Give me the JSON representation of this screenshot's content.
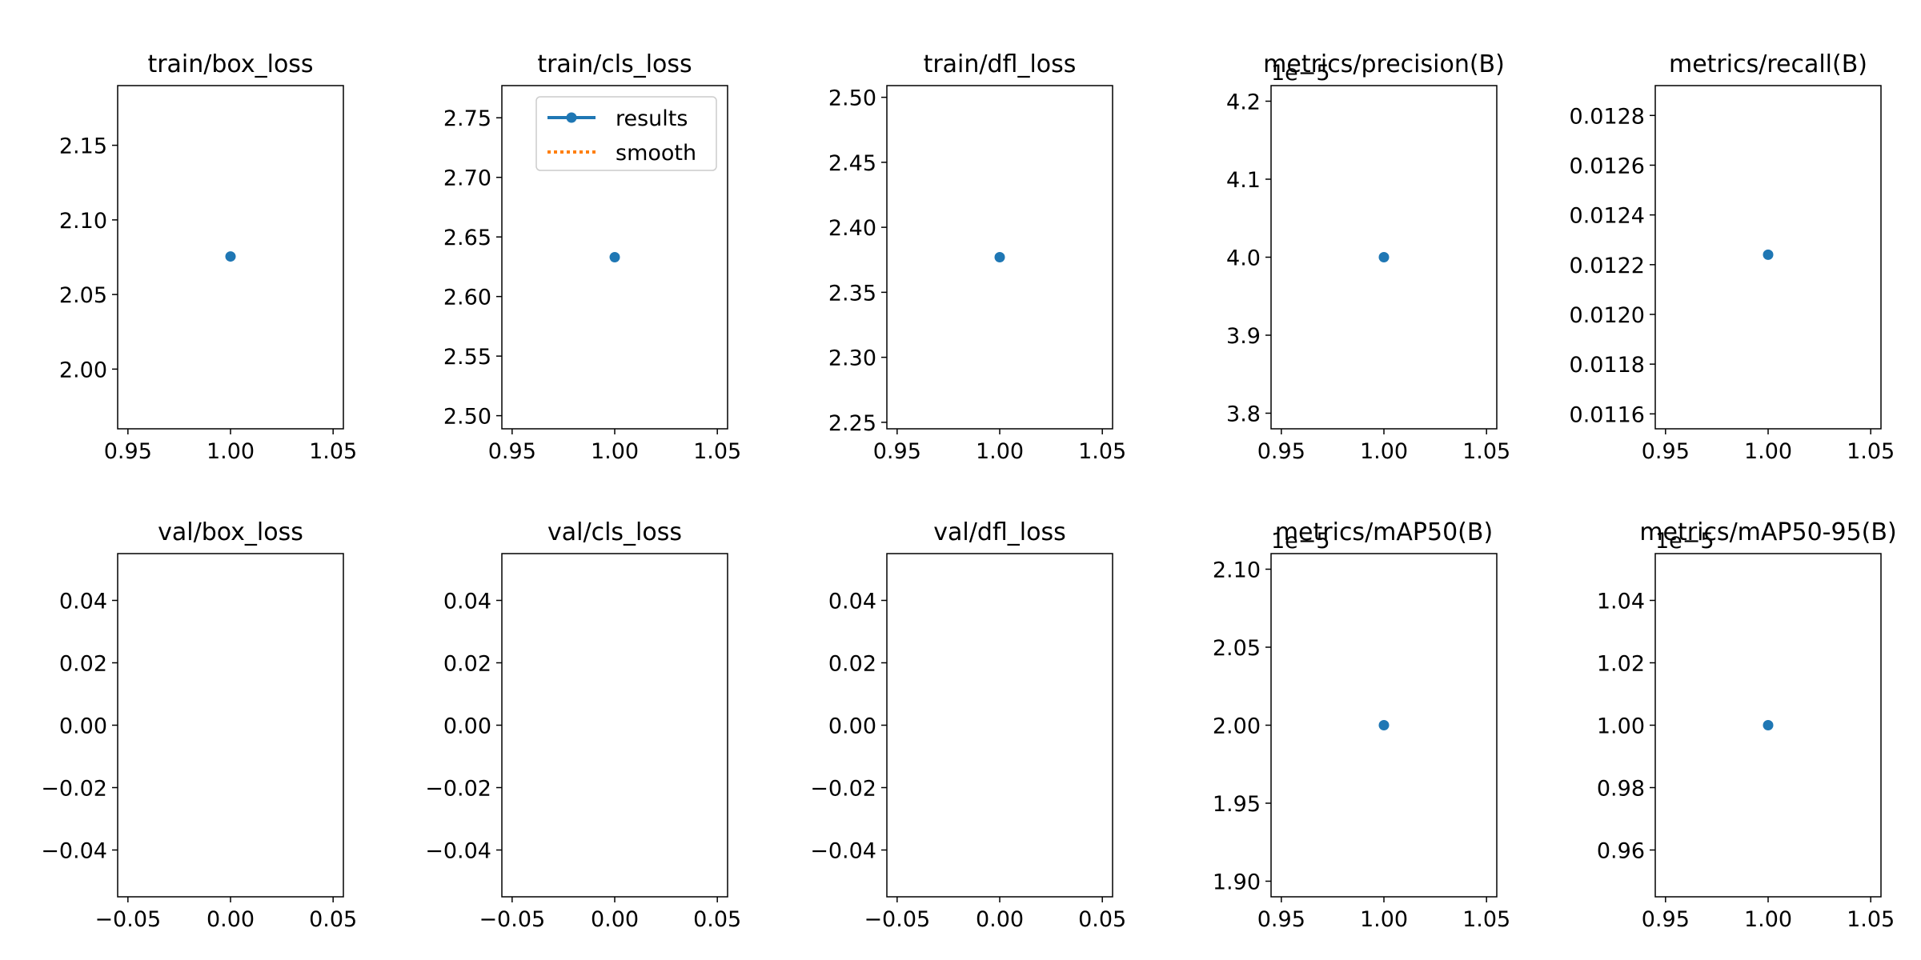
{
  "chart_data": [
    {
      "type": "line",
      "title": "train/box_loss",
      "offset": "",
      "xlim": [
        0.945,
        1.055
      ],
      "ylim": [
        1.96,
        2.19
      ],
      "xticks": [
        0.95,
        1.0,
        1.05
      ],
      "xtick_labels": [
        "0.95",
        "1.00",
        "1.05"
      ],
      "yticks": [
        2.0,
        2.05,
        2.1,
        2.15
      ],
      "ytick_labels": [
        "2.00",
        "2.05",
        "2.10",
        "2.15"
      ],
      "series": [
        {
          "name": "results",
          "color": "#1f77b4",
          "x": [
            1.0
          ],
          "y": [
            2.0755
          ]
        }
      ]
    },
    {
      "type": "line",
      "title": "train/cls_loss",
      "offset": "",
      "xlim": [
        0.945,
        1.055
      ],
      "ylim": [
        2.489,
        2.777
      ],
      "xticks": [
        0.95,
        1.0,
        1.05
      ],
      "xtick_labels": [
        "0.95",
        "1.00",
        "1.05"
      ],
      "yticks": [
        2.5,
        2.55,
        2.6,
        2.65,
        2.7,
        2.75
      ],
      "ytick_labels": [
        "2.50",
        "2.55",
        "2.60",
        "2.65",
        "2.70",
        "2.75"
      ],
      "series": [
        {
          "name": "results",
          "color": "#1f77b4",
          "x": [
            1.0
          ],
          "y": [
            2.633
          ]
        }
      ],
      "legend": {
        "loc": "upper right",
        "entries": [
          {
            "label": "results",
            "color": "#1f77b4",
            "style": "solid-marker"
          },
          {
            "label": "smooth",
            "color": "#ff7f0e",
            "style": "dotted"
          }
        ]
      }
    },
    {
      "type": "line",
      "title": "train/dfl_loss",
      "offset": "",
      "xlim": [
        0.945,
        1.055
      ],
      "ylim": [
        2.245,
        2.509
      ],
      "xticks": [
        0.95,
        1.0,
        1.05
      ],
      "xtick_labels": [
        "0.95",
        "1.00",
        "1.05"
      ],
      "yticks": [
        2.25,
        2.3,
        2.35,
        2.4,
        2.45,
        2.5
      ],
      "ytick_labels": [
        "2.25",
        "2.30",
        "2.35",
        "2.40",
        "2.45",
        "2.50"
      ],
      "series": [
        {
          "name": "results",
          "color": "#1f77b4",
          "x": [
            1.0
          ],
          "y": [
            2.377
          ]
        }
      ]
    },
    {
      "type": "line",
      "title": "metrics/precision(B)",
      "offset": "1e−5",
      "xlim": [
        0.945,
        1.055
      ],
      "ylim": [
        3.78,
        4.22
      ],
      "xticks": [
        0.95,
        1.0,
        1.05
      ],
      "xtick_labels": [
        "0.95",
        "1.00",
        "1.05"
      ],
      "yticks": [
        3.8,
        3.9,
        4.0,
        4.1,
        4.2
      ],
      "ytick_labels": [
        "3.8",
        "3.9",
        "4.0",
        "4.1",
        "4.2"
      ],
      "series": [
        {
          "name": "results",
          "color": "#1f77b4",
          "x": [
            1.0
          ],
          "y": [
            4.0
          ]
        }
      ]
    },
    {
      "type": "line",
      "title": "metrics/recall(B)",
      "offset": "",
      "xlim": [
        0.945,
        1.055
      ],
      "ylim": [
        0.01154,
        0.01292
      ],
      "xticks": [
        0.95,
        1.0,
        1.05
      ],
      "xtick_labels": [
        "0.95",
        "1.00",
        "1.05"
      ],
      "yticks": [
        0.0116,
        0.0118,
        0.012,
        0.0122,
        0.0124,
        0.0126,
        0.0128
      ],
      "ytick_labels": [
        "0.0116",
        "0.0118",
        "0.0120",
        "0.0122",
        "0.0124",
        "0.0126",
        "0.0128"
      ],
      "series": [
        {
          "name": "results",
          "color": "#1f77b4",
          "x": [
            1.0
          ],
          "y": [
            0.01224
          ]
        }
      ]
    },
    {
      "type": "line",
      "title": "val/box_loss",
      "offset": "",
      "xlim": [
        -0.055,
        0.055
      ],
      "ylim": [
        -0.055,
        0.055
      ],
      "xticks": [
        -0.05,
        0.0,
        0.05
      ],
      "xtick_labels": [
        "−0.05",
        "0.00",
        "0.05"
      ],
      "yticks": [
        -0.04,
        -0.02,
        0.0,
        0.02,
        0.04
      ],
      "ytick_labels": [
        "−0.04",
        "−0.02",
        "0.00",
        "0.02",
        "0.04"
      ],
      "series": []
    },
    {
      "type": "line",
      "title": "val/cls_loss",
      "offset": "",
      "xlim": [
        -0.055,
        0.055
      ],
      "ylim": [
        -0.055,
        0.055
      ],
      "xticks": [
        -0.05,
        0.0,
        0.05
      ],
      "xtick_labels": [
        "−0.05",
        "0.00",
        "0.05"
      ],
      "yticks": [
        -0.04,
        -0.02,
        0.0,
        0.02,
        0.04
      ],
      "ytick_labels": [
        "−0.04",
        "−0.02",
        "0.00",
        "0.02",
        "0.04"
      ],
      "series": []
    },
    {
      "type": "line",
      "title": "val/dfl_loss",
      "offset": "",
      "xlim": [
        -0.055,
        0.055
      ],
      "ylim": [
        -0.055,
        0.055
      ],
      "xticks": [
        -0.05,
        0.0,
        0.05
      ],
      "xtick_labels": [
        "−0.05",
        "0.00",
        "0.05"
      ],
      "yticks": [
        -0.04,
        -0.02,
        0.0,
        0.02,
        0.04
      ],
      "ytick_labels": [
        "−0.04",
        "−0.02",
        "0.00",
        "0.02",
        "0.04"
      ],
      "series": []
    },
    {
      "type": "line",
      "title": "metrics/mAP50(B)",
      "offset": "1e−5",
      "xlim": [
        0.945,
        1.055
      ],
      "ylim": [
        1.89,
        2.11
      ],
      "xticks": [
        0.95,
        1.0,
        1.05
      ],
      "xtick_labels": [
        "0.95",
        "1.00",
        "1.05"
      ],
      "yticks": [
        1.9,
        1.95,
        2.0,
        2.05,
        2.1
      ],
      "ytick_labels": [
        "1.90",
        "1.95",
        "2.00",
        "2.05",
        "2.10"
      ],
      "series": [
        {
          "name": "results",
          "color": "#1f77b4",
          "x": [
            1.0
          ],
          "y": [
            2.0
          ]
        }
      ]
    },
    {
      "type": "line",
      "title": "metrics/mAP50-95(B)",
      "offset": "1e−5",
      "xlim": [
        0.945,
        1.055
      ],
      "ylim": [
        0.945,
        1.055
      ],
      "xticks": [
        0.95,
        1.0,
        1.05
      ],
      "xtick_labels": [
        "0.95",
        "1.00",
        "1.05"
      ],
      "yticks": [
        0.96,
        0.98,
        1.0,
        1.02,
        1.04
      ],
      "ytick_labels": [
        "0.96",
        "0.98",
        "1.00",
        "1.02",
        "1.04"
      ],
      "series": [
        {
          "name": "results",
          "color": "#1f77b4",
          "x": [
            1.0
          ],
          "y": [
            1.0
          ]
        }
      ]
    }
  ]
}
